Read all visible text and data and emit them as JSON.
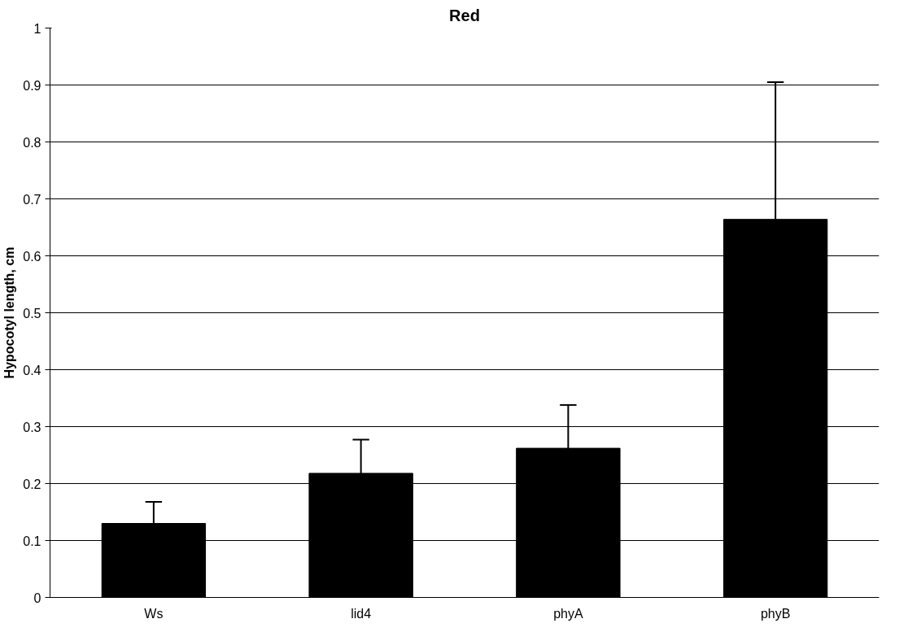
{
  "chart_data": {
    "type": "bar",
    "title": "Red",
    "ylabel": "Hypocotyl length, cm",
    "categories": [
      "Ws",
      "lid4",
      "phyA",
      "phyB"
    ],
    "values": [
      0.13,
      0.218,
      0.262,
      0.664
    ],
    "errors": [
      [
        0.13,
        0.168
      ],
      [
        0.218,
        0.277
      ],
      [
        0.262,
        0.338
      ],
      [
        0.664,
        0.905
      ]
    ],
    "color": "#000000",
    "ylim": [
      0,
      1
    ],
    "yticks": [
      0,
      0.1,
      0.2,
      0.3,
      0.4,
      0.5,
      0.6,
      0.7,
      0.8,
      0.9,
      1
    ],
    "grid": "y"
  }
}
